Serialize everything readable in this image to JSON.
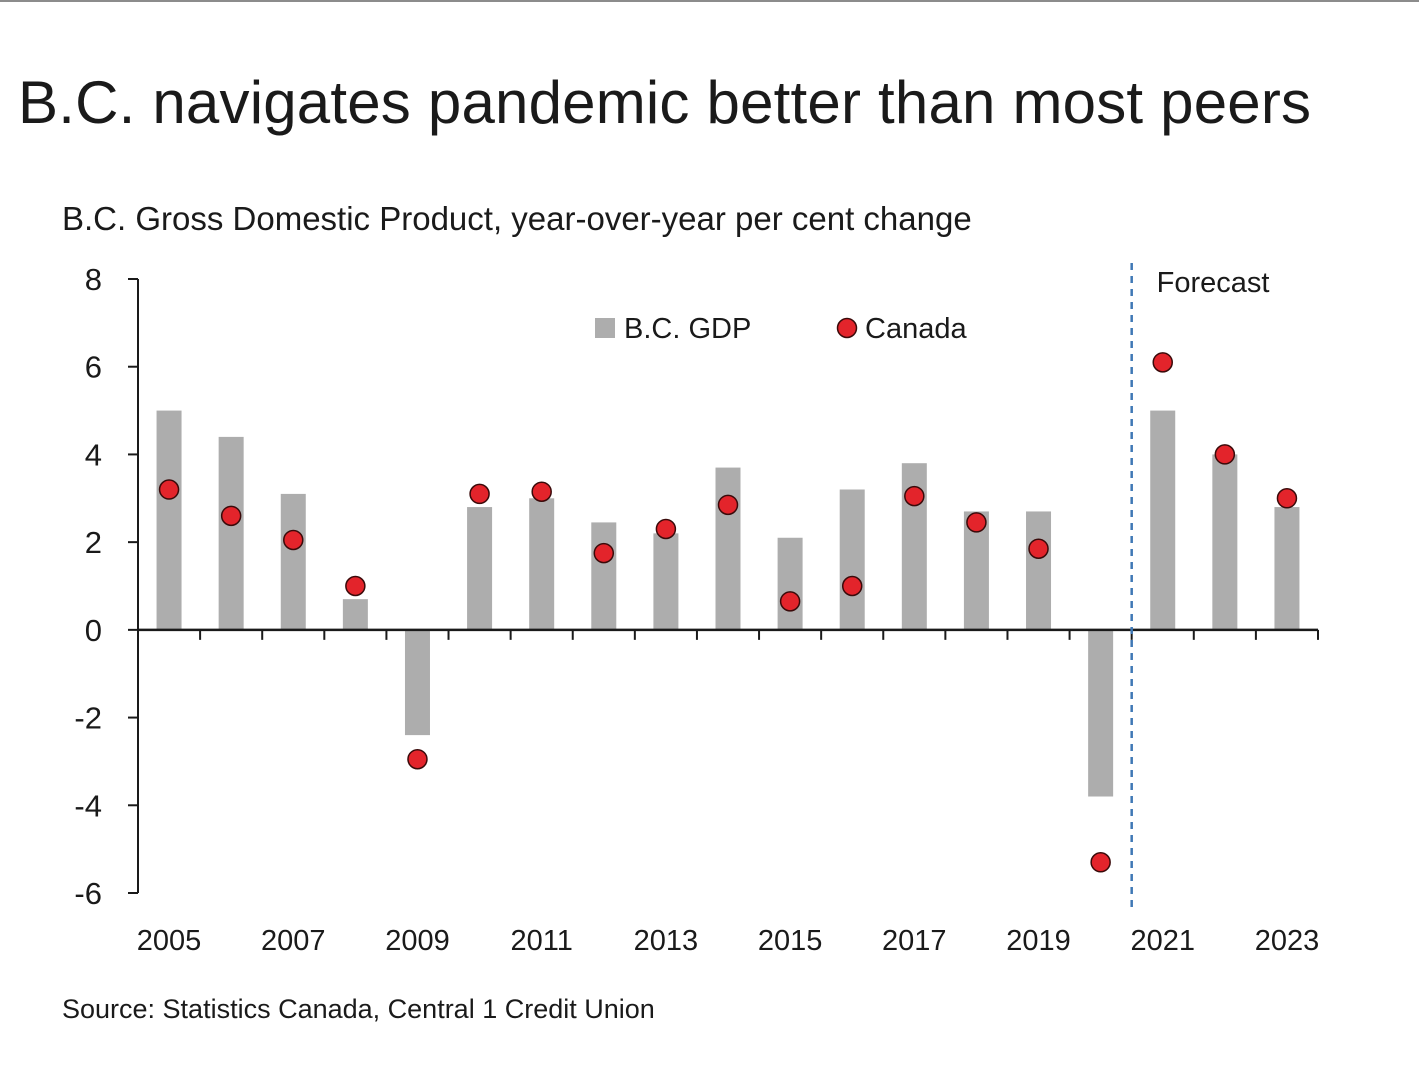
{
  "title": "B.C. navigates pandemic better than most peers",
  "subtitle": "B.C. Gross Domestic Product, year-over-year per cent change",
  "source": "Source: Statistics Canada, Central 1 Credit Union",
  "colors": {
    "bar": "#adadad",
    "dot": "#e3242b",
    "dot_outline": "#3a0a0a",
    "forecast_line": "#3f78b5",
    "axis": "#1a1a1a"
  },
  "chart_data": {
    "type": "bar",
    "title": "B.C. navigates pandemic better than most peers",
    "subtitle": "B.C. Gross Domestic Product, year-over-year per cent change",
    "xlabel": "",
    "ylabel": "",
    "ylim": [
      -6,
      8
    ],
    "yticks": [
      -6,
      -4,
      -2,
      0,
      2,
      4,
      6,
      8
    ],
    "ytick_labels": [
      "-6",
      "-4",
      "-2",
      "0",
      "2",
      "4",
      "6",
      "8"
    ],
    "categories": [
      "2005",
      "2006",
      "2007",
      "2008",
      "2009",
      "2010",
      "2011",
      "2012",
      "2013",
      "2014",
      "2015",
      "2016",
      "2017",
      "2018",
      "2019",
      "2020",
      "2021",
      "2022",
      "2023"
    ],
    "xtick_labels": [
      "2005",
      "2007",
      "2009",
      "2011",
      "2013",
      "2015",
      "2017",
      "2019",
      "2021",
      "2023"
    ],
    "series": [
      {
        "name": "B.C. GDP",
        "type": "bar",
        "values": [
          5.0,
          4.4,
          3.1,
          0.7,
          -2.4,
          2.8,
          3.0,
          2.45,
          2.2,
          3.7,
          2.1,
          3.2,
          3.8,
          2.7,
          2.7,
          -3.8,
          5.0,
          4.0,
          2.8
        ]
      },
      {
        "name": "Canada",
        "type": "scatter",
        "values": [
          3.2,
          2.6,
          2.05,
          1.0,
          -2.95,
          3.1,
          3.15,
          1.75,
          2.3,
          2.85,
          0.65,
          1.0,
          3.05,
          2.45,
          1.85,
          -5.3,
          6.1,
          4.0,
          3.0
        ]
      }
    ],
    "forecast": {
      "label": "Forecast",
      "after": "2020"
    },
    "legend": {
      "position": "top-center",
      "entries": [
        "B.C. GDP",
        "Canada"
      ]
    },
    "grid": false
  }
}
